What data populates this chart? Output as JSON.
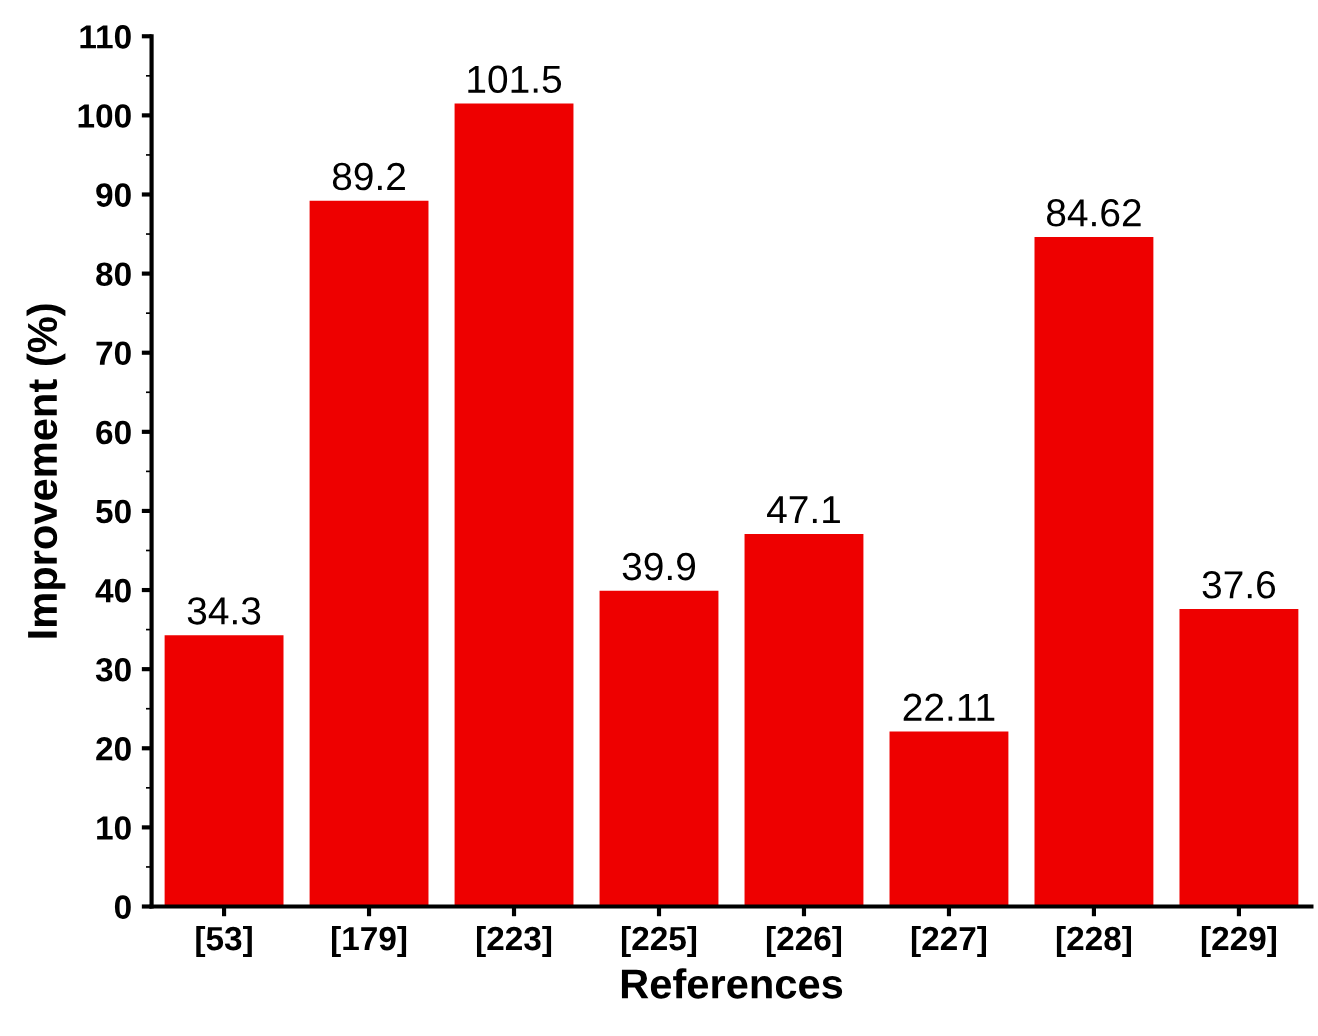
{
  "chart_data": {
    "type": "bar",
    "xlabel": "References",
    "ylabel": "Improvement (%)",
    "categories": [
      "[53]",
      "[179]",
      "[223]",
      "[225]",
      "[226]",
      "[227]",
      "[228]",
      "[229]"
    ],
    "values": [
      34.3,
      89.2,
      101.5,
      39.9,
      47.1,
      22.11,
      84.62,
      37.6
    ],
    "color": "#ee0000",
    "ylim": [
      0,
      110
    ],
    "yticks": [
      0,
      10,
      20,
      30,
      40,
      50,
      60,
      70,
      80,
      90,
      100,
      110
    ],
    "data_labels": true,
    "grid": false,
    "legend": false
  }
}
